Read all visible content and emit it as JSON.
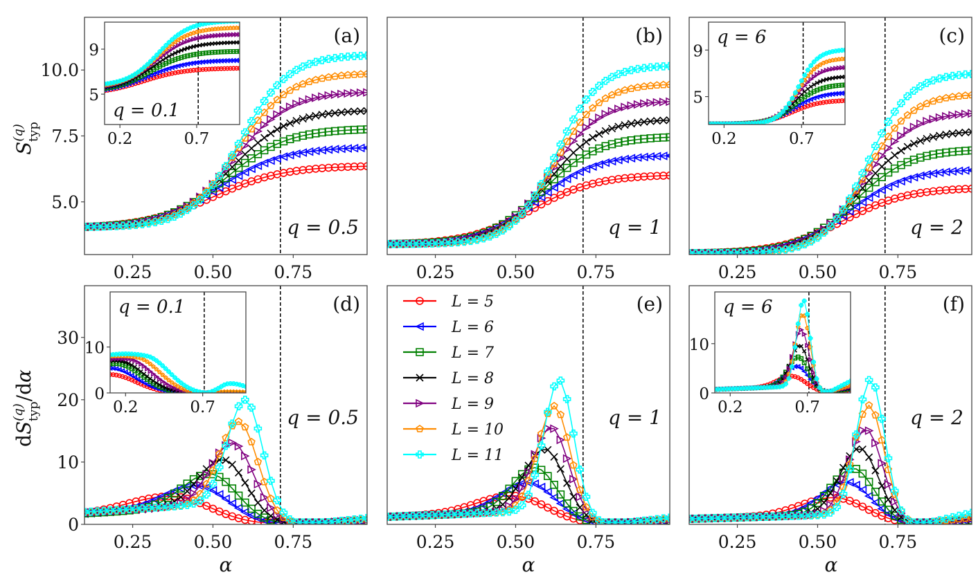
{
  "chart_data": {
    "type": "line",
    "title": "",
    "shared": {
      "x": [
        0.1,
        0.12,
        0.14,
        0.16,
        0.18,
        0.2,
        0.22,
        0.24,
        0.26,
        0.28,
        0.3,
        0.32,
        0.34,
        0.36,
        0.38,
        0.4,
        0.42,
        0.44,
        0.46,
        0.48,
        0.5,
        0.52,
        0.54,
        0.56,
        0.58,
        0.6,
        0.62,
        0.64,
        0.66,
        0.68,
        0.7,
        0.72,
        0.74,
        0.76,
        0.78,
        0.8,
        0.82,
        0.84,
        0.86,
        0.88,
        0.9,
        0.92,
        0.94,
        0.96,
        0.98
      ],
      "xlabel": "α",
      "xlim": [
        0.1,
        0.98
      ],
      "xticks": [
        0.25,
        0.5,
        0.75
      ],
      "xtick_labels": [
        "0.25",
        "0.50",
        "0.75"
      ],
      "critical_alpha": 0.71,
      "legend": {
        "placement": "upper-left of panel (e)",
        "entries": [
          {
            "label": "L = 5",
            "color": "#ff0000",
            "marker": "circle"
          },
          {
            "label": "L = 6",
            "color": "#0000ff",
            "marker": "triangle-left"
          },
          {
            "label": "L = 7",
            "color": "#008000",
            "marker": "square"
          },
          {
            "label": "L = 8",
            "color": "#000000",
            "marker": "x"
          },
          {
            "label": "L = 9",
            "color": "#800080",
            "marker": "triangle-right"
          },
          {
            "label": "L = 10",
            "color": "#ff8c00",
            "marker": "pentagon"
          },
          {
            "label": "L = 11",
            "color": "#00ffff",
            "marker": "plus-filled"
          }
        ]
      }
    },
    "top_row": {
      "ylabel": "S_typ^(q)",
      "ylim": [
        3.0,
        12.0
      ],
      "yticks": [
        5.0,
        7.5,
        10.0
      ],
      "ytick_labels": [
        "5.0",
        "7.5",
        "10.0"
      ]
    },
    "bottom_row": {
      "ylabel": "dS_typ^(q)/dα",
      "ylim": [
        0,
        38.3
      ],
      "yticks": [
        0,
        10,
        20,
        30
      ],
      "ytick_labels": [
        "0",
        "10",
        "20",
        "30"
      ]
    },
    "panels": [
      {
        "tag": "(a)",
        "q_label": "q = 0.5",
        "kind": "entropy",
        "row": 0,
        "col": 0,
        "show_yticks": true,
        "series": [
          {
            "name": "L = 5",
            "start": 4.05,
            "end": 6.35,
            "mid": 0.5,
            "width": 0.11
          },
          {
            "name": "L = 6",
            "start": 4.05,
            "end": 7.05,
            "mid": 0.52,
            "width": 0.1
          },
          {
            "name": "L = 7",
            "start": 4.05,
            "end": 7.75,
            "mid": 0.54,
            "width": 0.095
          },
          {
            "name": "L = 8",
            "start": 4.05,
            "end": 8.45,
            "mid": 0.555,
            "width": 0.09
          },
          {
            "name": "L = 9",
            "start": 4.05,
            "end": 9.15,
            "mid": 0.565,
            "width": 0.085
          },
          {
            "name": "L = 10",
            "start": 4.05,
            "end": 9.85,
            "mid": 0.575,
            "width": 0.08
          },
          {
            "name": "L = 11",
            "start": 4.05,
            "end": 10.55,
            "mid": 0.585,
            "width": 0.075
          }
        ],
        "inset": {
          "q_label": "q = 0.1",
          "q_label_pos": "bottom-left",
          "xlim": [
            0.1,
            0.98
          ],
          "ylim": [
            2.3,
            11.4
          ],
          "xticks": [
            0.2,
            0.7
          ],
          "xtick_labels": [
            "0.2",
            "0.7"
          ],
          "yticks": [
            5,
            9
          ],
          "ytick_labels": [
            "5",
            "9"
          ],
          "series": [
            {
              "name": "L = 5",
              "start": 5.3,
              "end": 7.3,
              "mid": 0.35,
              "width": 0.14
            },
            {
              "name": "L = 6",
              "start": 5.4,
              "end": 8.0,
              "mid": 0.38,
              "width": 0.13
            },
            {
              "name": "L = 7",
              "start": 5.5,
              "end": 8.8,
              "mid": 0.4,
              "width": 0.12
            },
            {
              "name": "L = 8",
              "start": 5.6,
              "end": 9.6,
              "mid": 0.42,
              "width": 0.115
            },
            {
              "name": "L = 9",
              "start": 5.7,
              "end": 10.3,
              "mid": 0.43,
              "width": 0.11
            },
            {
              "name": "L = 10",
              "start": 5.8,
              "end": 10.9,
              "mid": 0.44,
              "width": 0.105
            },
            {
              "name": "L = 11",
              "start": 5.9,
              "end": 11.5,
              "mid": 0.45,
              "width": 0.1
            }
          ]
        }
      },
      {
        "tag": "(b)",
        "q_label": "q = 1",
        "kind": "entropy",
        "row": 0,
        "col": 1,
        "show_yticks": false,
        "series": [
          {
            "name": "L = 5",
            "start": 3.4,
            "end": 6.0,
            "mid": 0.55,
            "width": 0.1
          },
          {
            "name": "L = 6",
            "start": 3.4,
            "end": 6.75,
            "mid": 0.57,
            "width": 0.09
          },
          {
            "name": "L = 7",
            "start": 3.4,
            "end": 7.45,
            "mid": 0.585,
            "width": 0.085
          },
          {
            "name": "L = 8",
            "start": 3.4,
            "end": 8.1,
            "mid": 0.6,
            "width": 0.08
          },
          {
            "name": "L = 9",
            "start": 3.4,
            "end": 8.8,
            "mid": 0.61,
            "width": 0.075
          },
          {
            "name": "L = 10",
            "start": 3.4,
            "end": 9.45,
            "mid": 0.62,
            "width": 0.07
          },
          {
            "name": "L = 11",
            "start": 3.4,
            "end": 10.15,
            "mid": 0.625,
            "width": 0.066
          }
        ]
      },
      {
        "tag": "(c)",
        "q_label": "q = 2",
        "kind": "entropy",
        "row": 0,
        "col": 2,
        "show_yticks": false,
        "series": [
          {
            "name": "L = 5",
            "start": 3.05,
            "end": 5.5,
            "mid": 0.58,
            "width": 0.1
          },
          {
            "name": "L = 6",
            "start": 3.05,
            "end": 6.2,
            "mid": 0.6,
            "width": 0.09
          },
          {
            "name": "L = 7",
            "start": 3.05,
            "end": 6.95,
            "mid": 0.615,
            "width": 0.085
          },
          {
            "name": "L = 8",
            "start": 3.05,
            "end": 7.65,
            "mid": 0.63,
            "width": 0.08
          },
          {
            "name": "L = 9",
            "start": 3.05,
            "end": 8.35,
            "mid": 0.64,
            "width": 0.075
          },
          {
            "name": "L = 10",
            "start": 3.05,
            "end": 9.05,
            "mid": 0.65,
            "width": 0.07
          },
          {
            "name": "L = 11",
            "start": 3.05,
            "end": 9.85,
            "mid": 0.655,
            "width": 0.066
          }
        ],
        "inset": {
          "q_label": "q = 6",
          "q_label_pos": "top-left",
          "xlim": [
            0.1,
            0.98
          ],
          "ylim": [
            2.6,
            11.4
          ],
          "xticks": [
            0.2,
            0.7
          ],
          "xtick_labels": [
            "0.2",
            "0.7"
          ],
          "yticks": [
            5,
            9
          ],
          "ytick_labels": [
            "5",
            "9"
          ],
          "series": [
            {
              "name": "L = 5",
              "start": 2.65,
              "end": 4.65,
              "mid": 0.64,
              "width": 0.09
            },
            {
              "name": "L = 6",
              "start": 2.65,
              "end": 5.3,
              "mid": 0.65,
              "width": 0.085
            },
            {
              "name": "L = 7",
              "start": 2.65,
              "end": 6.0,
              "mid": 0.66,
              "width": 0.08
            },
            {
              "name": "L = 8",
              "start": 2.65,
              "end": 6.7,
              "mid": 0.665,
              "width": 0.075
            },
            {
              "name": "L = 9",
              "start": 2.65,
              "end": 7.5,
              "mid": 0.67,
              "width": 0.07
            },
            {
              "name": "L = 10",
              "start": 2.65,
              "end": 8.25,
              "mid": 0.675,
              "width": 0.066
            },
            {
              "name": "L = 11",
              "start": 2.65,
              "end": 9.0,
              "mid": 0.68,
              "width": 0.062
            }
          ]
        }
      },
      {
        "tag": "(d)",
        "q_label": "q = 0.5",
        "kind": "derivative",
        "row": 1,
        "col": 0,
        "show_yticks": true,
        "series": [
          {
            "name": "L = 5",
            "base": 3.0,
            "peak": 4.5,
            "peak_x": 0.37,
            "width": 0.17,
            "tail": 0.3
          },
          {
            "name": "L = 6",
            "base": 3.1,
            "peak": 6.2,
            "peak_x": 0.45,
            "width": 0.14,
            "tail": 0.4
          },
          {
            "name": "L = 7",
            "base": 3.2,
            "peak": 8.1,
            "peak_x": 0.49,
            "width": 0.12,
            "tail": 0.5
          },
          {
            "name": "L = 8",
            "base": 3.3,
            "peak": 10.4,
            "peak_x": 0.53,
            "width": 0.105,
            "tail": 0.6
          },
          {
            "name": "L = 9",
            "base": 3.4,
            "peak": 13.1,
            "peak_x": 0.56,
            "width": 0.095,
            "tail": 0.7
          },
          {
            "name": "L = 10",
            "base": 3.5,
            "peak": 16.5,
            "peak_x": 0.58,
            "width": 0.085,
            "tail": 0.9
          },
          {
            "name": "L = 11",
            "base": 3.6,
            "peak": 20.0,
            "peak_x": 0.6,
            "width": 0.078,
            "tail": 1.2
          }
        ],
        "inset": {
          "q_label": "q = 0.1",
          "q_label_pos": "top-left",
          "xlim": [
            0.1,
            0.98
          ],
          "ylim": [
            0,
            22
          ],
          "xticks": [
            0.2,
            0.7
          ],
          "xtick_labels": [
            "0.2",
            "0.7"
          ],
          "yticks": [
            0,
            10
          ],
          "ytick_labels": [
            "0",
            "10"
          ],
          "series": [
            {
              "name": "L = 5",
              "y0": 4.0,
              "peak": 4.0,
              "peak_x": 0.1,
              "zero_x": 0.7,
              "tail": 0.0
            },
            {
              "name": "L = 6",
              "y0": 5.4,
              "peak": 5.4,
              "peak_x": 0.1,
              "zero_x": 0.7,
              "tail": 0.0
            },
            {
              "name": "L = 7",
              "y0": 6.3,
              "peak": 6.4,
              "peak_x": 0.14,
              "zero_x": 0.7,
              "tail": 0.0
            },
            {
              "name": "L = 8",
              "y0": 7.0,
              "peak": 7.0,
              "peak_x": 0.16,
              "zero_x": 0.7,
              "tail": 0.0
            },
            {
              "name": "L = 9",
              "y0": 7.4,
              "peak": 7.6,
              "peak_x": 0.22,
              "zero_x": 0.7,
              "tail": 0.0
            },
            {
              "name": "L = 10",
              "y0": 8.0,
              "peak": 8.3,
              "peak_x": 0.28,
              "zero_x": 0.7,
              "tail": 0.2
            },
            {
              "name": "L = 11",
              "y0": 8.3,
              "peak": 9.2,
              "peak_x": 0.35,
              "zero_x": 0.72,
              "tail": 1.5
            }
          ]
        }
      },
      {
        "tag": "(e)",
        "q_label": "q = 1",
        "kind": "derivative",
        "row": 1,
        "col": 1,
        "show_yticks": false,
        "has_legend": true,
        "series": [
          {
            "name": "L = 5",
            "base": 2.2,
            "peak": 4.6,
            "peak_x": 0.49,
            "width": 0.15,
            "tail": 0.3
          },
          {
            "name": "L = 6",
            "base": 2.2,
            "peak": 6.7,
            "peak_x": 0.54,
            "width": 0.12,
            "tail": 0.4
          },
          {
            "name": "L = 7",
            "base": 2.2,
            "peak": 9.1,
            "peak_x": 0.56,
            "width": 0.1,
            "tail": 0.5
          },
          {
            "name": "L = 8",
            "base": 2.2,
            "peak": 12.1,
            "peak_x": 0.59,
            "width": 0.09,
            "tail": 0.6
          },
          {
            "name": "L = 9",
            "base": 2.2,
            "peak": 15.6,
            "peak_x": 0.61,
            "width": 0.08,
            "tail": 0.8
          },
          {
            "name": "L = 10",
            "base": 2.2,
            "peak": 19.0,
            "peak_x": 0.62,
            "width": 0.072,
            "tail": 1.0
          },
          {
            "name": "L = 11",
            "base": 2.2,
            "peak": 23.2,
            "peak_x": 0.635,
            "width": 0.066,
            "tail": 1.3
          }
        ]
      },
      {
        "tag": "(f)",
        "q_label": "q = 2",
        "kind": "derivative",
        "row": 1,
        "col": 2,
        "show_yticks": false,
        "series": [
          {
            "name": "L = 5",
            "base": 1.6,
            "peak": 4.3,
            "peak_x": 0.55,
            "width": 0.14,
            "tail": 0.3
          },
          {
            "name": "L = 6",
            "base": 1.6,
            "peak": 6.8,
            "peak_x": 0.59,
            "width": 0.11,
            "tail": 0.5
          },
          {
            "name": "L = 7",
            "base": 1.6,
            "peak": 9.0,
            "peak_x": 0.61,
            "width": 0.095,
            "tail": 0.6
          },
          {
            "name": "L = 8",
            "base": 1.6,
            "peak": 12.2,
            "peak_x": 0.63,
            "width": 0.085,
            "tail": 0.8
          },
          {
            "name": "L = 9",
            "base": 1.6,
            "peak": 15.3,
            "peak_x": 0.65,
            "width": 0.075,
            "tail": 1.0
          },
          {
            "name": "L = 10",
            "base": 1.6,
            "peak": 19.1,
            "peak_x": 0.66,
            "width": 0.068,
            "tail": 1.3
          },
          {
            "name": "L = 11",
            "base": 1.6,
            "peak": 23.3,
            "peak_x": 0.665,
            "width": 0.062,
            "tail": 2.6
          }
        ],
        "inset": {
          "q_label": "q = 6",
          "q_label_pos": "top-left",
          "xlim": [
            0.1,
            0.98
          ],
          "ylim": [
            0,
            20.5
          ],
          "xticks": [
            0.2,
            0.7
          ],
          "xtick_labels": [
            "0.2",
            "0.7"
          ],
          "yticks": [
            0,
            10
          ],
          "ytick_labels": [
            "0",
            "10"
          ],
          "series": [
            {
              "name": "L = 5",
              "base": 1.3,
              "peak": 3.4,
              "peak_x": 0.6,
              "width": 0.13,
              "tail": 0.5
            },
            {
              "name": "L = 6",
              "base": 1.3,
              "peak": 5.4,
              "peak_x": 0.63,
              "width": 0.11,
              "tail": 0.7
            },
            {
              "name": "L = 7",
              "base": 1.3,
              "peak": 7.3,
              "peak_x": 0.64,
              "width": 0.095,
              "tail": 0.9
            },
            {
              "name": "L = 8",
              "base": 1.3,
              "peak": 9.6,
              "peak_x": 0.65,
              "width": 0.085,
              "tail": 1.1
            },
            {
              "name": "L = 9",
              "base": 1.3,
              "peak": 12.8,
              "peak_x": 0.66,
              "width": 0.075,
              "tail": 1.5
            },
            {
              "name": "L = 10",
              "base": 1.3,
              "peak": 16.0,
              "peak_x": 0.67,
              "width": 0.068,
              "tail": 2.0
            },
            {
              "name": "L = 11",
              "base": 1.3,
              "peak": 18.8,
              "peak_x": 0.675,
              "width": 0.062,
              "tail": 3.5
            }
          ]
        }
      }
    ]
  }
}
